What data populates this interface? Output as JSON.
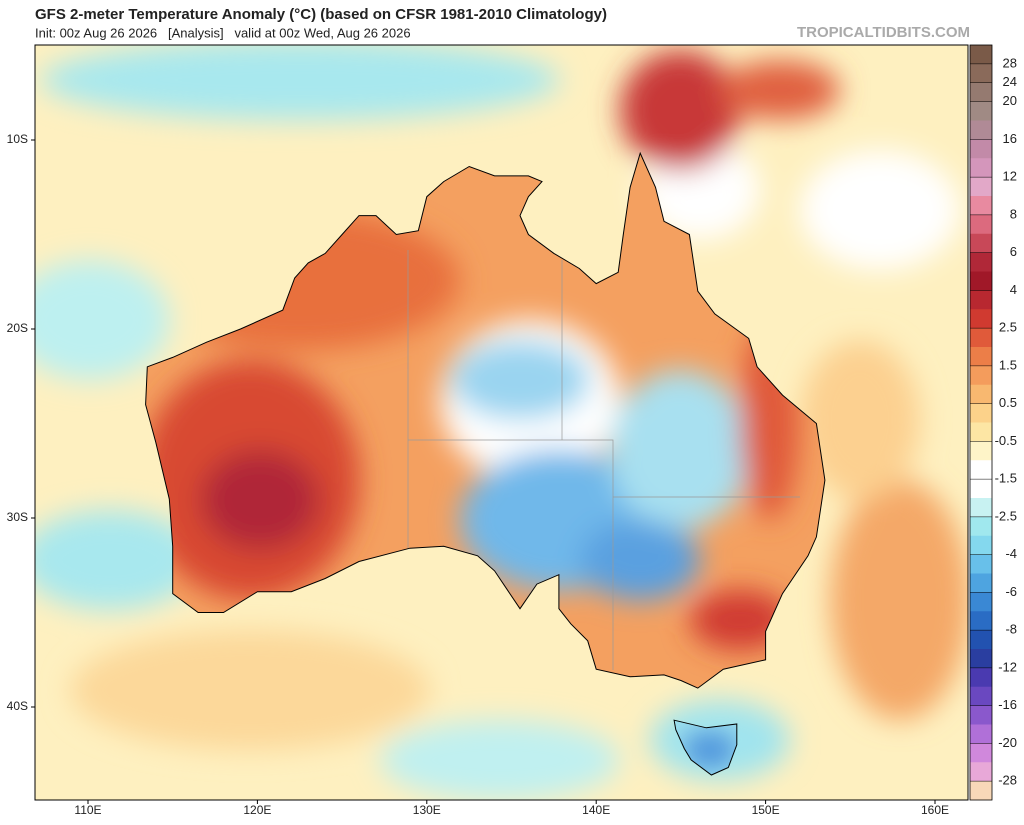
{
  "header": {
    "title": "GFS 2-meter Temperature Anomaly (°C) (based on CFSR 1981-2010 Climatology)",
    "subtitle": "Init: 00z Aug 26 2026   [Analysis]   valid at 00z Wed, Aug 26 2026",
    "watermark": "TROPICALTIDBITS.COM"
  },
  "map": {
    "lat_labels": [
      "10S",
      "20S",
      "30S",
      "40S"
    ],
    "lon_labels": [
      "110E",
      "120E",
      "130E",
      "140E",
      "150E",
      "160E"
    ]
  },
  "colorbar": {
    "labels": [
      28,
      24,
      20,
      16,
      12,
      8,
      6,
      4,
      2.5,
      1.5,
      0.5,
      -0.5,
      -1.5,
      -2.5,
      -4,
      -6,
      -8,
      -12,
      -16,
      -20,
      -28
    ],
    "colors": [
      "#7a5a48",
      "#8a6a5a",
      "#957a70",
      "#a08a84",
      "#b08a96",
      "#c28aa8",
      "#d496bb",
      "#e2a8c8",
      "#e88aa0",
      "#dc6a7e",
      "#c84858",
      "#b02838",
      "#a01828",
      "#b82830",
      "#d03a30",
      "#e05a3a",
      "#ec7e48",
      "#f49c5c",
      "#f8b870",
      "#fcd28a",
      "#fde6a4",
      "#fef4c8",
      "#ffffff",
      "#ffffff",
      "#c8f2f2",
      "#a0e8ee",
      "#84d8ee",
      "#68c0ea",
      "#4ea4e0",
      "#3a88d4",
      "#2a6cc4",
      "#2252b0",
      "#2a3ea0",
      "#4a3ab0",
      "#6a48c0",
      "#8a58cc",
      "#b070d8",
      "#d088dc",
      "#e8a8d8",
      "#f8d8b8"
    ]
  }
}
